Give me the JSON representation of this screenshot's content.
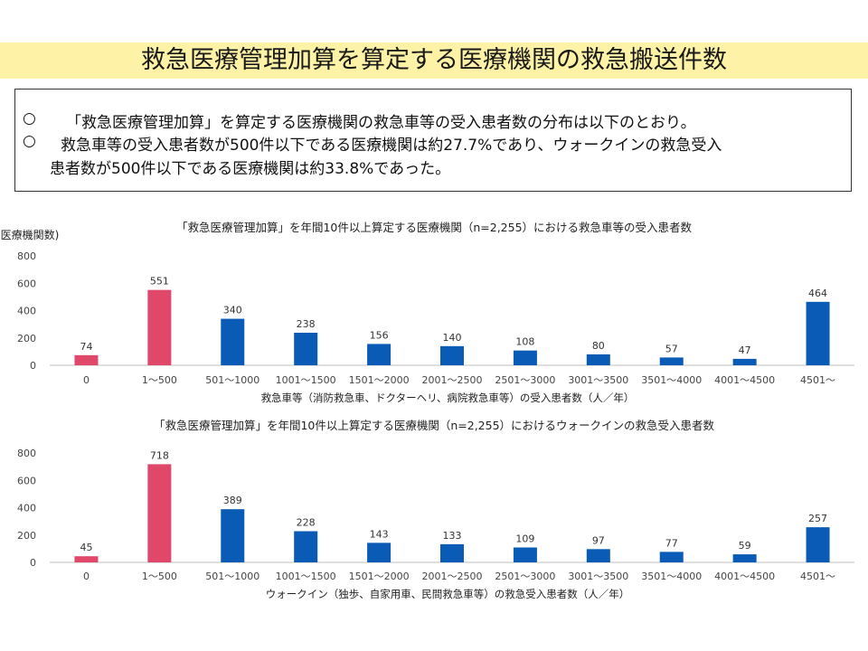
{
  "slide": {
    "title": "救急医療管理加算を算定する医療機関の救急搬送件数",
    "bullets": [
      {
        "marker": "○",
        "text": "「救急医療管理加算」を算定する医療機関の救急車等の受入患者数の分布は以下のとおり。"
      },
      {
        "marker": "○",
        "text": "救急車等の受入患者数が500件以下である医療機関は約27.7%であり、ウォークインの救急受入",
        "continuation": "患者数が500件以下である医療機関は約33.8%であった。"
      }
    ],
    "y_axis_caption": "(医療機関数)"
  },
  "chart_data": [
    {
      "type": "bar",
      "title": "「救急医療管理加算」を年間10件以上算定する医療機関（n=2,255）における救急車等の受入患者数",
      "xlabel": "救急車等（消防救急車、ドクターヘリ、病院救急車等）の受入患者数（人／年）",
      "ylabel": "(医療機関数)",
      "ylim": [
        0,
        800
      ],
      "yticks": [
        "0",
        "200",
        "400",
        "600",
        "800"
      ],
      "categories": [
        "0",
        "1〜500",
        "501〜1000",
        "1001〜1500",
        "1501〜2000",
        "2001〜2500",
        "2501〜3000",
        "3001〜3500",
        "3501〜4000",
        "4001〜4500",
        "4501〜"
      ],
      "values": [
        74,
        551,
        340,
        238,
        156,
        140,
        108,
        80,
        57,
        47,
        464
      ],
      "value_labels": [
        "74",
        "551",
        "340",
        "238",
        "156",
        "140",
        "108",
        "80",
        "57",
        "47",
        "464"
      ],
      "highlight_color": "#e0486a",
      "bar_color": "#0a5bb5",
      "highlight_indices": [
        0,
        1
      ],
      "grid": false
    },
    {
      "type": "bar",
      "title": "「救急医療管理加算」を年間10件以上算定する医療機関（n=2,255）におけるウォークインの救急受入患者数",
      "xlabel": "ウォークイン（独歩、自家用車、民間救急車等）の救急受入患者数（人／年）",
      "ylabel": "",
      "ylim": [
        0,
        800
      ],
      "yticks": [
        "0",
        "200",
        "400",
        "600",
        "800"
      ],
      "categories": [
        "0",
        "1〜500",
        "501〜1000",
        "1001〜1500",
        "1501〜2000",
        "2001〜2500",
        "2501〜3000",
        "3001〜3500",
        "3501〜4000",
        "4001〜4500",
        "4501〜"
      ],
      "values": [
        45,
        718,
        389,
        228,
        143,
        133,
        109,
        97,
        77,
        59,
        257
      ],
      "value_labels": [
        "45",
        "718",
        "389",
        "228",
        "143",
        "133",
        "109",
        "97",
        "77",
        "59",
        "257"
      ],
      "highlight_color": "#e0486a",
      "bar_color": "#0a5bb5",
      "highlight_indices": [
        0,
        1
      ],
      "grid": false
    }
  ]
}
